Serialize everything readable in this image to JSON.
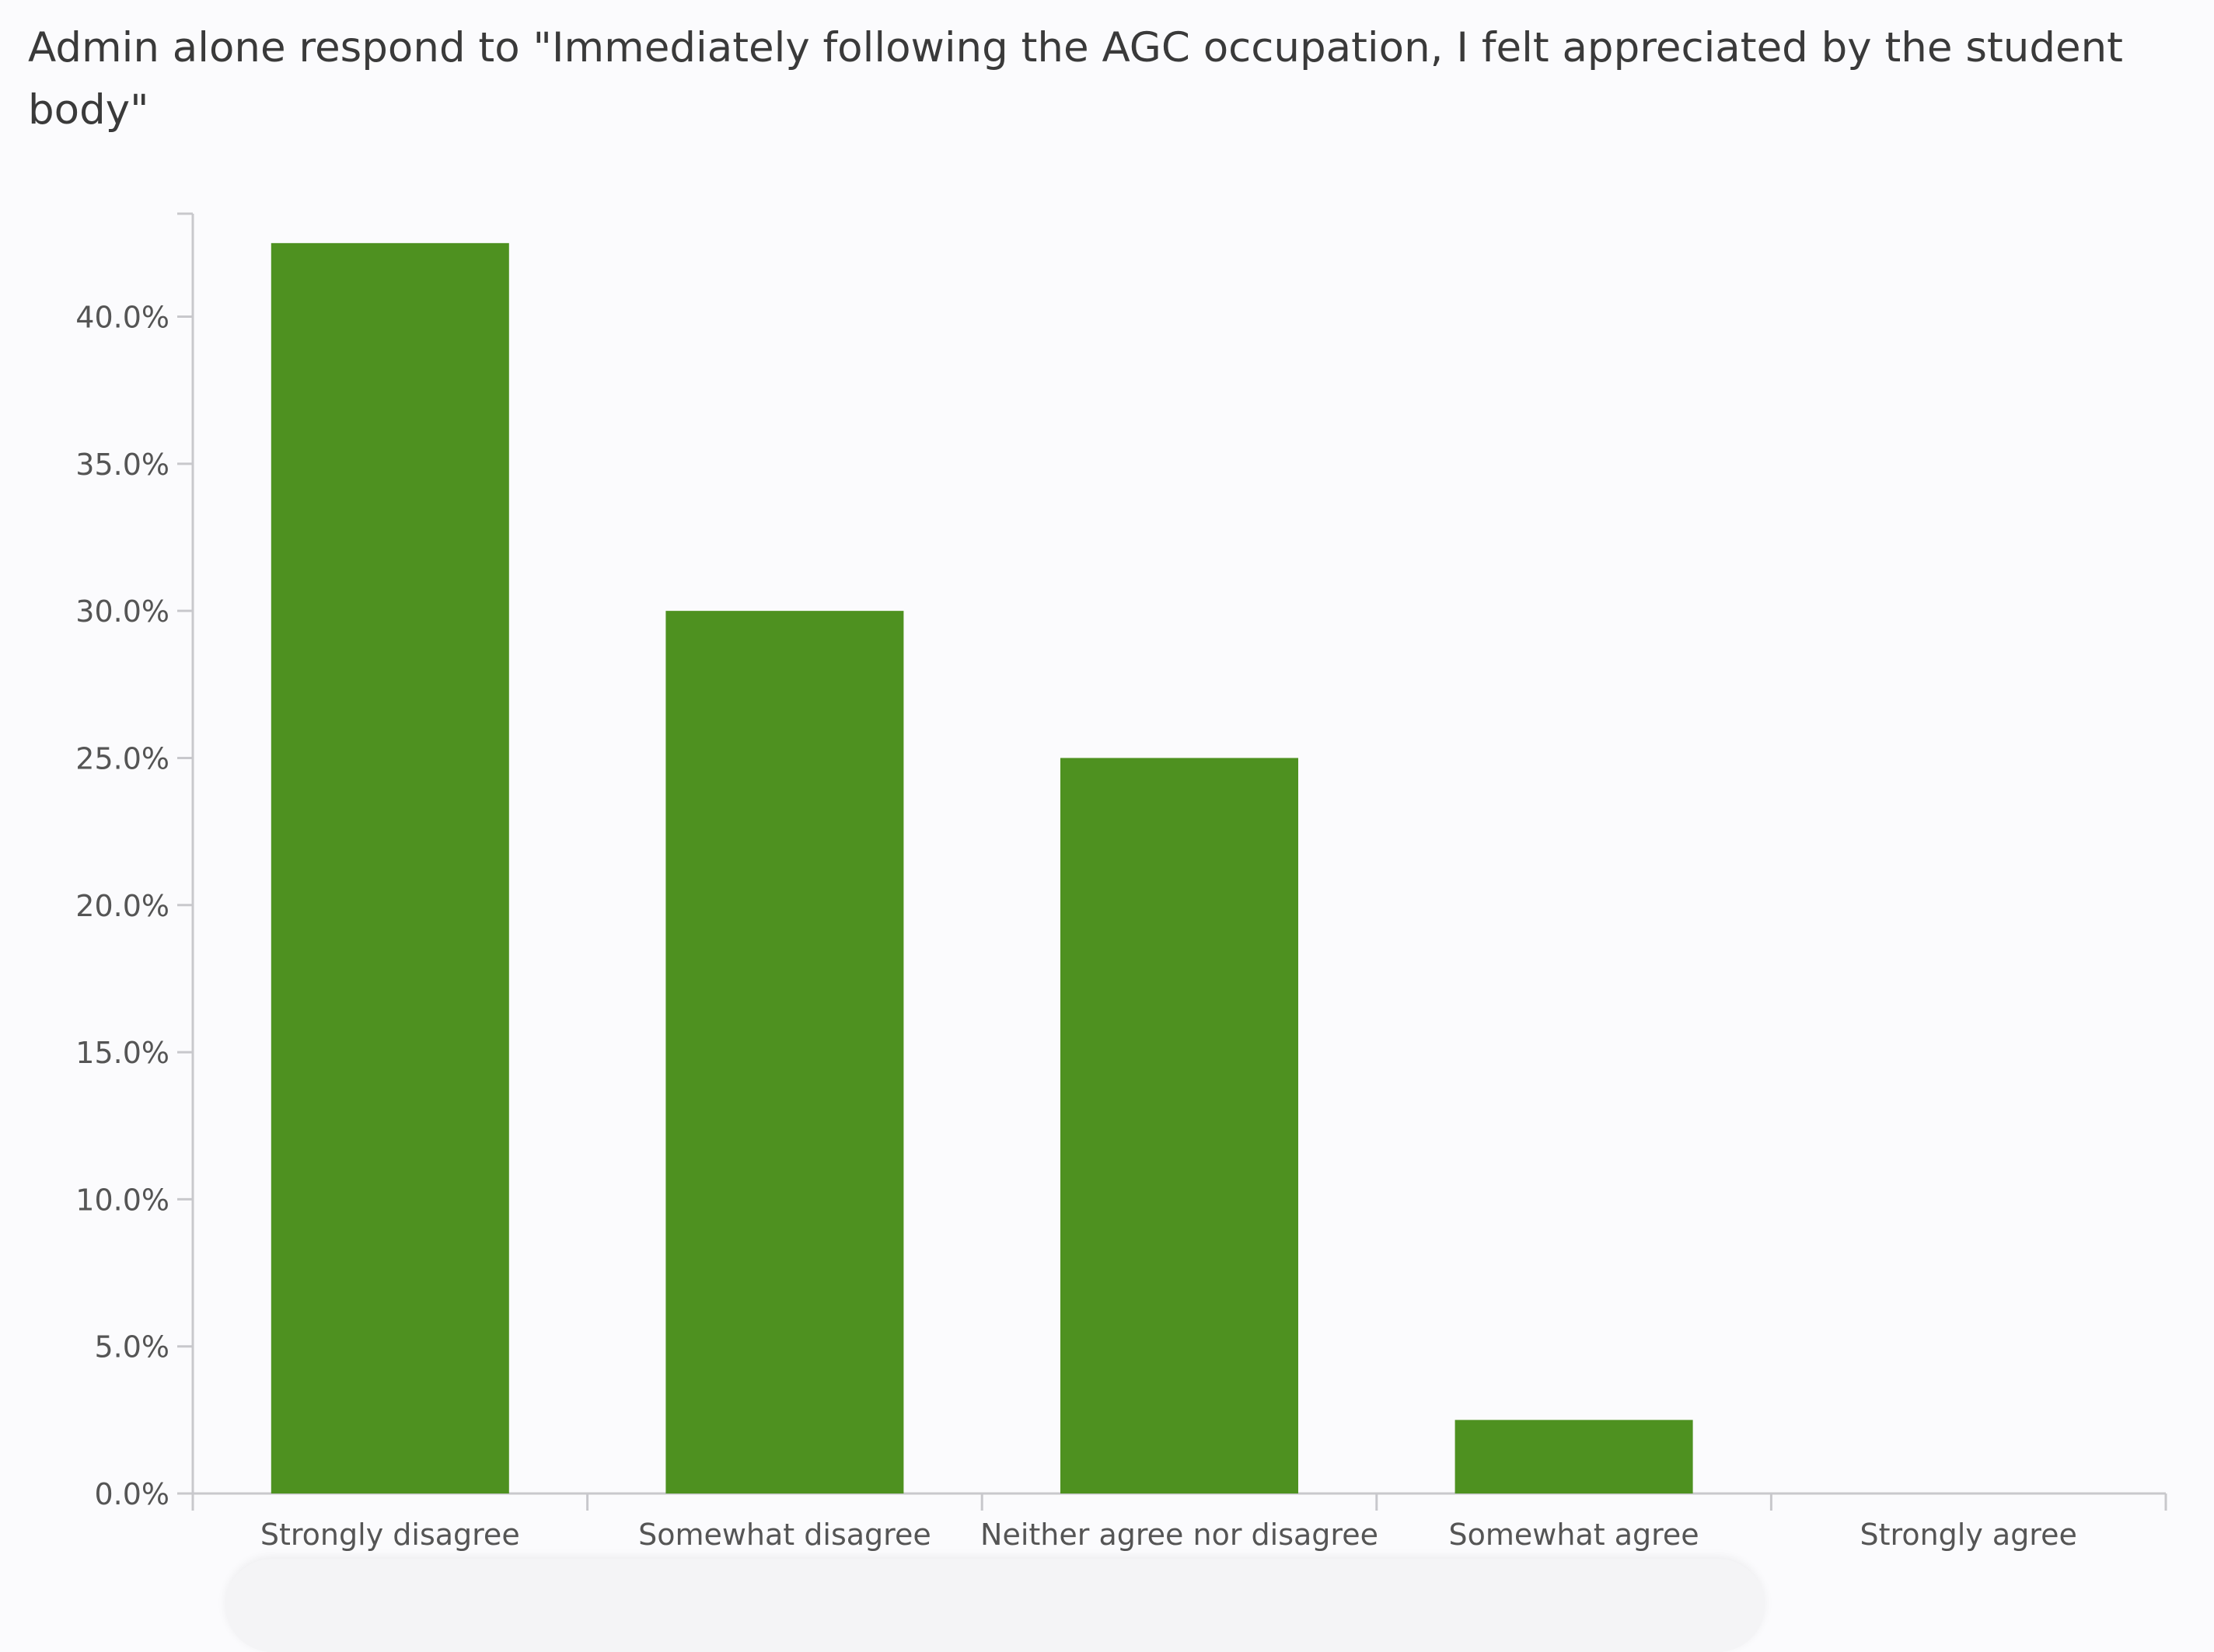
{
  "chart_data": {
    "type": "bar",
    "title": "Admin alone respond to \"Immediately following the AGC occupation, I felt appreciated by the student body\"",
    "xlabel": "",
    "ylabel": "",
    "categories": [
      "Strongly disagree",
      "Somewhat disagree",
      "Neither agree nor disagree",
      "Somewhat agree",
      "Strongly agree"
    ],
    "values": [
      42.5,
      30.0,
      25.0,
      2.5,
      0.0
    ],
    "ylim": [
      0,
      43.5
    ],
    "yticks": [
      0,
      5,
      10,
      15,
      20,
      25,
      30,
      35,
      40
    ],
    "ytick_labels": [
      "0.0%",
      "5.0%",
      "10.0%",
      "15.0%",
      "20.0%",
      "25.0%",
      "30.0%",
      "35.0%",
      "40.0%"
    ],
    "bar_color": "#4e9120",
    "axis_color": "#c8c8cc",
    "grid": false,
    "legend": "none"
  }
}
